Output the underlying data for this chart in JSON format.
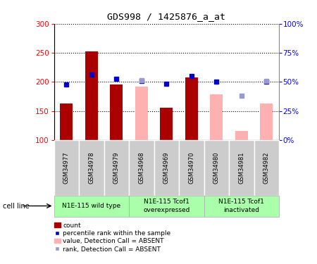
{
  "title": "GDS998 / 1425876_a_at",
  "samples": [
    "GSM34977",
    "GSM34978",
    "GSM34979",
    "GSM34968",
    "GSM34969",
    "GSM34970",
    "GSM34980",
    "GSM34981",
    "GSM34982"
  ],
  "bar_values": [
    163,
    252,
    195,
    null,
    156,
    207,
    null,
    null,
    null
  ],
  "bar_absent_values": [
    null,
    null,
    null,
    192,
    null,
    null,
    178,
    115,
    163
  ],
  "rank_values": [
    196,
    213,
    205,
    202,
    197,
    210,
    200,
    null,
    200
  ],
  "rank_absent_values": [
    null,
    null,
    null,
    203,
    null,
    null,
    null,
    176,
    201
  ],
  "ylim_left": [
    100,
    300
  ],
  "ylim_right": [
    0,
    100
  ],
  "yticks_left": [
    100,
    150,
    200,
    250,
    300
  ],
  "yticks_right": [
    0,
    25,
    50,
    75,
    100
  ],
  "ytick_labels_right": [
    "0%",
    "25%",
    "50%",
    "75%",
    "100%"
  ],
  "bar_color": "#aa0000",
  "bar_absent_color": "#ffb0b0",
  "rank_color": "#0000cc",
  "rank_absent_color": "#9999cc",
  "bar_width": 0.5,
  "groups": [
    {
      "label": "N1E-115 wild type",
      "span": [
        0,
        3
      ]
    },
    {
      "label": "N1E-115 Tcof1\noverexpressed",
      "span": [
        3,
        6
      ]
    },
    {
      "label": "N1E-115 Tcof1\ninactivated",
      "span": [
        6,
        9
      ]
    }
  ],
  "group_color": "#aaffaa",
  "sample_box_color": "#cccccc",
  "cell_line_label": "cell line",
  "legend_items": [
    {
      "type": "patch",
      "color": "#aa0000",
      "label": "count"
    },
    {
      "type": "marker",
      "color": "#0000cc",
      "label": "percentile rank within the sample"
    },
    {
      "type": "patch",
      "color": "#ffb0b0",
      "label": "value, Detection Call = ABSENT"
    },
    {
      "type": "marker",
      "color": "#9999cc",
      "label": "rank, Detection Call = ABSENT"
    }
  ]
}
